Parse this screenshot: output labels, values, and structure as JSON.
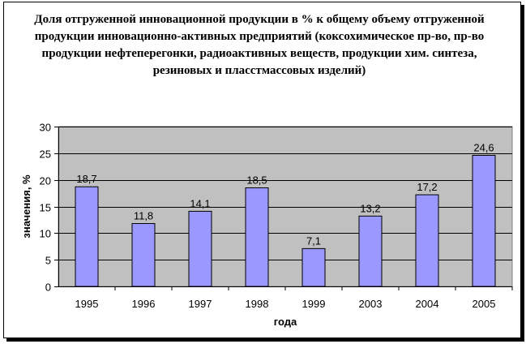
{
  "chart_data": {
    "type": "bar",
    "title": "Доля отгруженной инновационной продукции в % к общему объему отгруженной продукции инновационно-активных предприятий (коксохимическое пр-во, пр-во продукции нефтеперегонки, радиоактивных веществ, продукции хим. синтеза, резиновых и пласстмассовых изделий)",
    "xlabel": "года",
    "ylabel": "значения, %",
    "categories": [
      "1995",
      "1996",
      "1997",
      "1998",
      "1999",
      "2003",
      "2004",
      "2005"
    ],
    "values": [
      18.7,
      11.8,
      14.1,
      18.5,
      7.1,
      13.2,
      17.2,
      24.6
    ],
    "data_labels": [
      "18,7",
      "11,8",
      "14,1",
      "18,5",
      "7,1",
      "13,2",
      "17,2",
      "24,6"
    ],
    "ylim": [
      0,
      30
    ],
    "yticks": [
      "0",
      "5",
      "10",
      "15",
      "20",
      "25",
      "30"
    ],
    "grid": true,
    "legend": "none",
    "colors": {
      "bar": "#9999ff",
      "plot_background": "#c0c0c0",
      "gridline": "#000000"
    }
  }
}
